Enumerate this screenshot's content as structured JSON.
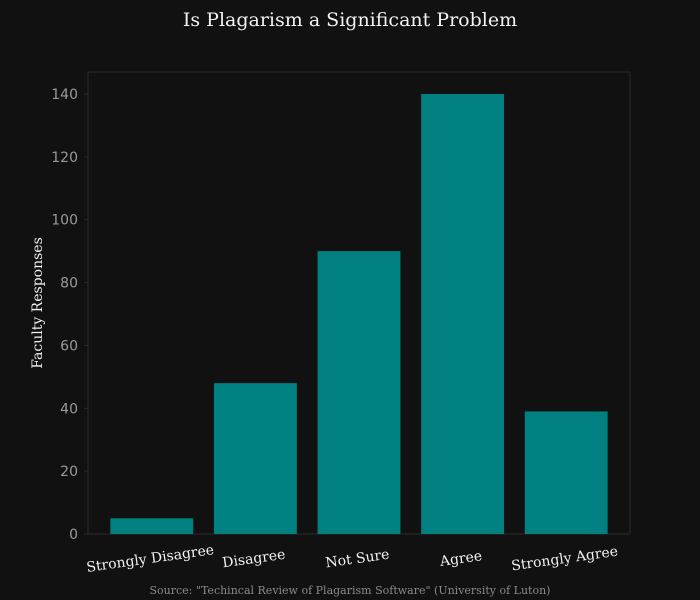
{
  "chart_data": {
    "type": "bar",
    "title": "Is Plagarism a Significant Problem",
    "xlabel": "",
    "ylabel": "Faculty Responses",
    "categories": [
      "Strongly Disagree",
      "Disagree",
      "Not Sure",
      "Agree",
      "Strongly Agree"
    ],
    "values": [
      5,
      48,
      90,
      140,
      39
    ],
    "ylim": [
      0,
      147
    ],
    "yticks": [
      0,
      20,
      40,
      60,
      80,
      100,
      120,
      140
    ],
    "grid": false,
    "legend": "none",
    "source": "Source: \"Techincal Review of Plagarism Software\" (University of Luton)",
    "colors": {
      "background": "#111111",
      "plot_area": "#111111",
      "bar": "#008080",
      "frame": "#2a2a2a",
      "text": "#f2f2f2",
      "tick_text": "#9a9a9a",
      "source_text": "#8a8a8a"
    }
  }
}
